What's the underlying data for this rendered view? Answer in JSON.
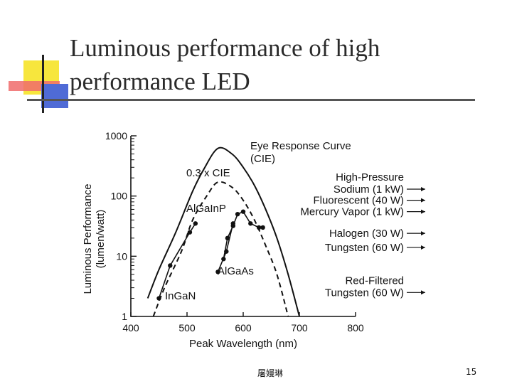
{
  "slide": {
    "title": "Luminous performance of high performance LED",
    "author": "屠嫚琳",
    "page_number": "15"
  },
  "chart_data": {
    "type": "line",
    "xlabel": "Peak Wavelength (nm)",
    "ylabel": "Luminous Performance (lumen/watt)",
    "x_ticks": [
      400,
      500,
      600,
      700,
      800
    ],
    "y_ticks": [
      {
        "value": 1,
        "label": "1"
      },
      {
        "value": 10,
        "label": "10"
      },
      {
        "value": 100,
        "label": "100"
      },
      {
        "value": 1000,
        "label": "1000"
      }
    ],
    "xlim": [
      400,
      800
    ],
    "ylim": [
      1,
      1000
    ],
    "y_scale": "log",
    "series": [
      {
        "name": "Eye Response Curve (CIE)",
        "label_lines": [
          "Eye Response Curve",
          "(CIE)"
        ],
        "style": "solid",
        "points": [
          [
            430,
            2
          ],
          [
            450,
            6
          ],
          [
            480,
            25
          ],
          [
            510,
            120
          ],
          [
            530,
            280
          ],
          [
            555,
            620
          ],
          [
            580,
            500
          ],
          [
            600,
            300
          ],
          [
            620,
            150
          ],
          [
            640,
            60
          ],
          [
            660,
            20
          ],
          [
            680,
            5
          ],
          [
            700,
            1
          ]
        ]
      },
      {
        "name": "0.3 x CIE",
        "label_lines": [
          "0.3 x CIE"
        ],
        "style": "dashed",
        "points": [
          [
            440,
            1
          ],
          [
            460,
            3
          ],
          [
            490,
            12
          ],
          [
            510,
            40
          ],
          [
            535,
            100
          ],
          [
            555,
            170
          ],
          [
            580,
            140
          ],
          [
            600,
            85
          ],
          [
            620,
            40
          ],
          [
            640,
            15
          ],
          [
            660,
            5
          ],
          [
            680,
            1
          ]
        ]
      },
      {
        "name": "AlGaInP",
        "label_lines": [
          "AlGaInP"
        ],
        "style": "markers",
        "points": [
          [
            565,
            9
          ],
          [
            572,
            20
          ],
          [
            582,
            32
          ],
          [
            590,
            50
          ],
          [
            600,
            55
          ],
          [
            613,
            35
          ],
          [
            628,
            30
          ],
          [
            635,
            30
          ]
        ]
      },
      {
        "name": "AlGaAs",
        "label_lines": [
          "AlGaAs"
        ],
        "style": "markers",
        "points": [
          [
            555,
            5.5
          ],
          [
            570,
            12
          ],
          [
            582,
            35
          ]
        ]
      },
      {
        "name": "InGaN",
        "label_lines": [
          "InGaN"
        ],
        "style": "markers",
        "points": [
          [
            450,
            2
          ],
          [
            470,
            7
          ],
          [
            505,
            25
          ],
          [
            515,
            35
          ]
        ]
      }
    ],
    "reference_lamps": [
      {
        "name": "High-Pressure Sodium (1 kW)",
        "label_lines": [
          "High-Pressure",
          "Sodium (1 kW)"
        ],
        "value": 130
      },
      {
        "name": "Fluorescent (40 W)",
        "label_lines": [
          "Fluorescent (40 W)"
        ],
        "value": 85
      },
      {
        "name": "Mercury Vapor (1 kW)",
        "label_lines": [
          "Mercury Vapor (1 kW)"
        ],
        "value": 55
      },
      {
        "name": "Halogen (30 W)",
        "label_lines": [
          "Halogen (30 W)"
        ],
        "value": 24
      },
      {
        "name": "Tungsten (60 W)",
        "label_lines": [
          "Tungsten (60 W)"
        ],
        "value": 14
      },
      {
        "name": "Red-Filtered Tungsten (60 W)",
        "label_lines": [
          "Red-Filtered",
          "Tungsten (60 W)"
        ],
        "value": 2.5
      }
    ]
  }
}
